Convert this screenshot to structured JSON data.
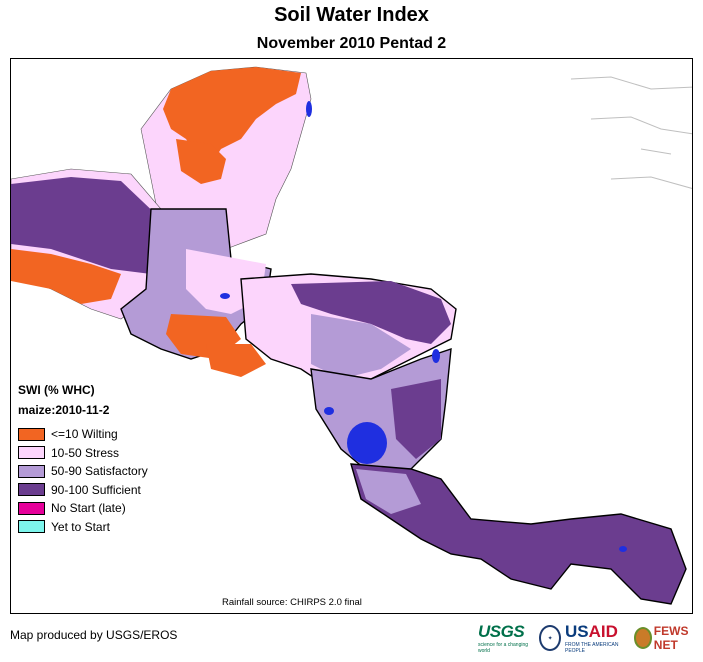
{
  "header": {
    "title": "Soil Water Index",
    "subtitle": "November 2010 Pentad 2"
  },
  "legend": {
    "title": "SWI (% WHC)",
    "subtitle": "maize:2010-11-2",
    "items": [
      {
        "label": "<=10 Wilting",
        "color": "#f26522"
      },
      {
        "label": "10-50 Stress",
        "color": "#fcd5fc"
      },
      {
        "label": "50-90 Satisfactory",
        "color": "#b49bd6"
      },
      {
        "label": "90-100 Sufficient",
        "color": "#6b3d8f"
      },
      {
        "label": "No Start (late)",
        "color": "#e6009a"
      },
      {
        "label": "Yet to Start",
        "color": "#7df5ec"
      }
    ]
  },
  "map": {
    "source_note": "Rainfall source: CHIRPS 2.0 final",
    "water_color": "#1f2fe0"
  },
  "footer": {
    "producer": "Map produced by USGS/EROS",
    "logos": {
      "usgs": "USGS",
      "usgs_tagline": "science for a changing world",
      "usaid_prefix": "US",
      "usaid_suffix": "AID",
      "usaid_tagline": "FROM THE AMERICAN PEOPLE",
      "fews": "FEWS NET"
    }
  }
}
